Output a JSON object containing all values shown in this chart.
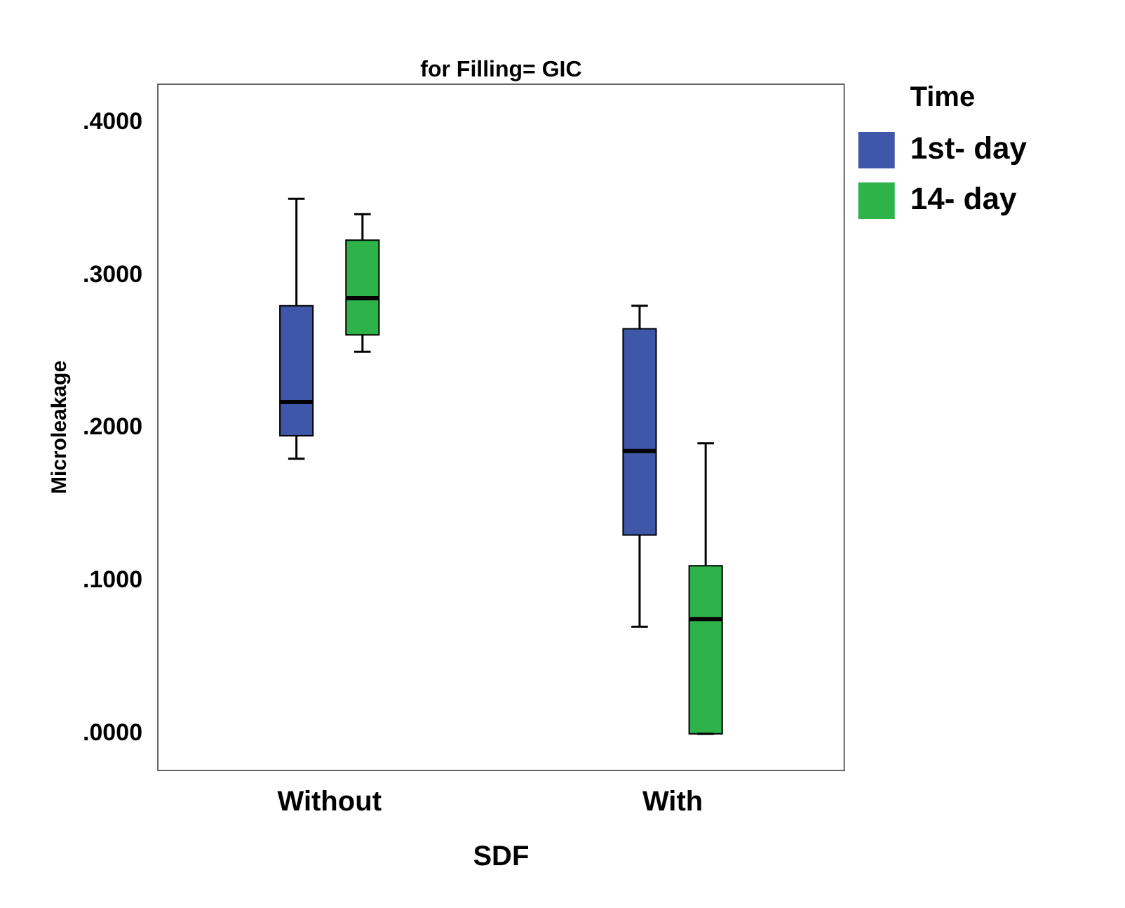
{
  "chart_data": {
    "type": "box",
    "title": "for Filling= GIC",
    "xlabel": "SDF",
    "ylabel": "Microleakage",
    "legend_title": "Time",
    "legend": "right",
    "categories": [
      "Without",
      "With"
    ],
    "ylim": [
      -0.024,
      0.425
    ],
    "yticks": [
      {
        "value": 0,
        "label": ".0000"
      },
      {
        "value": 0.1,
        "label": ".1000"
      },
      {
        "value": 0.2,
        "label": ".2000"
      },
      {
        "value": 0.3,
        "label": ".3000"
      },
      {
        "value": 0.4,
        "label": ".4000"
      }
    ],
    "series": [
      {
        "name": "1st- day",
        "color": "#3f57a8",
        "boxes": [
          {
            "low": 0.18,
            "q1": 0.195,
            "median": 0.217,
            "q3": 0.28,
            "high": 0.35
          },
          {
            "low": 0.07,
            "q1": 0.13,
            "median": 0.185,
            "q3": 0.265,
            "high": 0.28
          }
        ]
      },
      {
        "name": "14- day",
        "color": "#2db34a",
        "boxes": [
          {
            "low": 0.25,
            "q1": 0.261,
            "median": 0.285,
            "q3": 0.323,
            "high": 0.34
          },
          {
            "low": 0,
            "q1": 0,
            "median": 0.075,
            "q3": 0.11,
            "high": 0.19
          }
        ]
      }
    ]
  }
}
